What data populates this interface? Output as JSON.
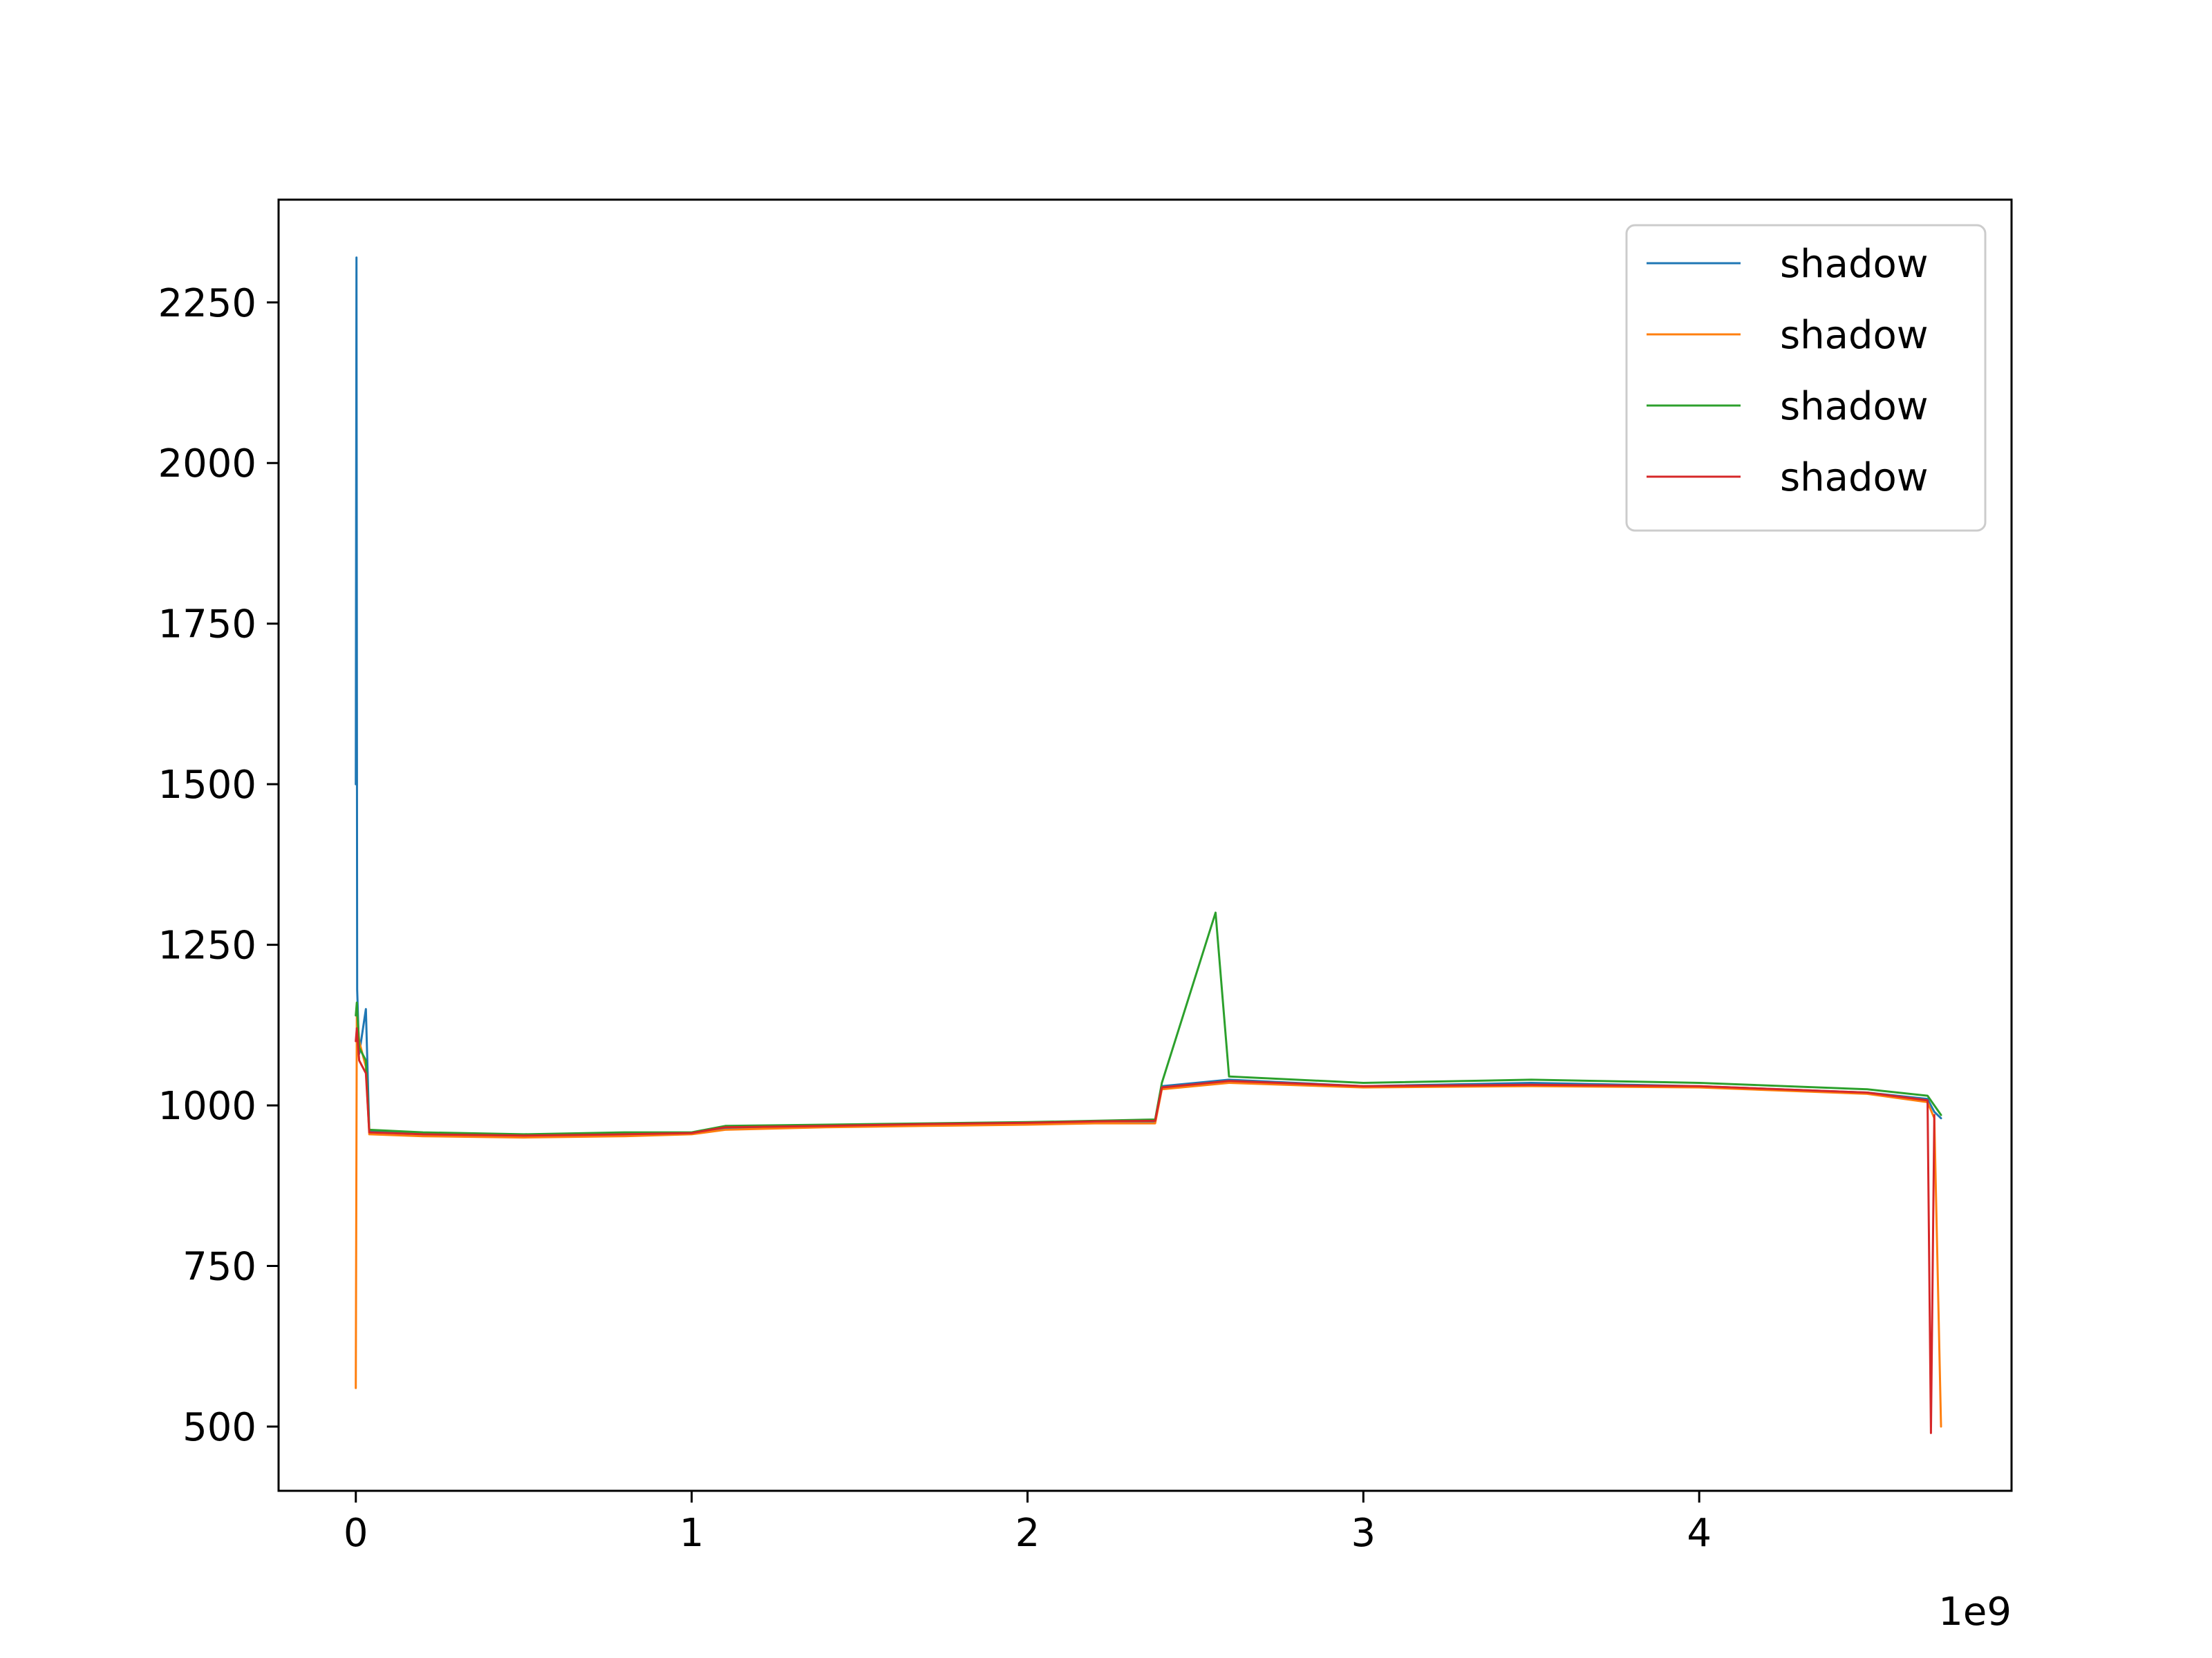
{
  "chart_data": {
    "type": "line",
    "title": "",
    "xlabel": "",
    "ylabel": "",
    "x_offset_label": "1e9",
    "xlim": [
      -0.23,
      4.93
    ],
    "ylim": [
      400,
      2410
    ],
    "x_ticks": [
      0,
      1,
      2,
      3,
      4
    ],
    "x_tick_labels": [
      "0",
      "1",
      "2",
      "3",
      "4"
    ],
    "y_ticks": [
      500,
      750,
      1000,
      1250,
      1500,
      1750,
      2000,
      2250
    ],
    "y_tick_labels": [
      "500",
      "750",
      "1000",
      "1250",
      "1500",
      "1750",
      "2000",
      "2250"
    ],
    "grid": false,
    "legend_position": "top-right",
    "x_units_note": "x values expressed in units of 1e9",
    "series": [
      {
        "name": "shadow",
        "color": "#1f77b4",
        "points": [
          [
            0,
            1500
          ],
          [
            0.002,
            2320
          ],
          [
            0.004,
            1180
          ],
          [
            0.01,
            1080
          ],
          [
            0.03,
            1150
          ],
          [
            0.04,
            960
          ],
          [
            0.2,
            955
          ],
          [
            0.5,
            952
          ],
          [
            0.8,
            955
          ],
          [
            1.0,
            956
          ],
          [
            1.1,
            965
          ],
          [
            1.4,
            968
          ],
          [
            1.7,
            970
          ],
          [
            2.0,
            972
          ],
          [
            2.2,
            975
          ],
          [
            2.38,
            975
          ],
          [
            2.4,
            1030
          ],
          [
            2.6,
            1040
          ],
          [
            3.0,
            1030
          ],
          [
            3.5,
            1035
          ],
          [
            4.0,
            1030
          ],
          [
            4.5,
            1020
          ],
          [
            4.68,
            1010
          ],
          [
            4.7,
            990
          ],
          [
            4.72,
            980
          ]
        ]
      },
      {
        "name": "shadow",
        "color": "#ff7f0e",
        "points": [
          [
            0,
            560
          ],
          [
            0.003,
            1150
          ],
          [
            0.01,
            1100
          ],
          [
            0.03,
            1060
          ],
          [
            0.04,
            955
          ],
          [
            0.2,
            952
          ],
          [
            0.5,
            950
          ],
          [
            0.8,
            952
          ],
          [
            1.0,
            955
          ],
          [
            1.1,
            962
          ],
          [
            1.4,
            966
          ],
          [
            1.7,
            968
          ],
          [
            2.0,
            970
          ],
          [
            2.2,
            972
          ],
          [
            2.38,
            972
          ],
          [
            2.4,
            1025
          ],
          [
            2.6,
            1035
          ],
          [
            3.0,
            1028
          ],
          [
            3.5,
            1030
          ],
          [
            4.0,
            1028
          ],
          [
            4.5,
            1018
          ],
          [
            4.68,
            1005
          ],
          [
            4.7,
            980
          ],
          [
            4.72,
            500
          ]
        ]
      },
      {
        "name": "shadow",
        "color": "#2ca02c",
        "points": [
          [
            0,
            1140
          ],
          [
            0.003,
            1160
          ],
          [
            0.01,
            1090
          ],
          [
            0.03,
            1070
          ],
          [
            0.04,
            962
          ],
          [
            0.2,
            958
          ],
          [
            0.5,
            955
          ],
          [
            0.8,
            958
          ],
          [
            1.0,
            958
          ],
          [
            1.1,
            968
          ],
          [
            1.4,
            970
          ],
          [
            1.7,
            972
          ],
          [
            2.0,
            974
          ],
          [
            2.2,
            976
          ],
          [
            2.38,
            978
          ],
          [
            2.4,
            1035
          ],
          [
            2.56,
            1300
          ],
          [
            2.6,
            1045
          ],
          [
            3.0,
            1035
          ],
          [
            3.5,
            1040
          ],
          [
            4.0,
            1035
          ],
          [
            4.5,
            1025
          ],
          [
            4.68,
            1015
          ],
          [
            4.7,
            1000
          ],
          [
            4.72,
            985
          ]
        ]
      },
      {
        "name": "shadow",
        "color": "#d62728",
        "points": [
          [
            0,
            1100
          ],
          [
            0.003,
            1120
          ],
          [
            0.01,
            1070
          ],
          [
            0.03,
            1050
          ],
          [
            0.04,
            958
          ],
          [
            0.2,
            955
          ],
          [
            0.5,
            953
          ],
          [
            0.8,
            955
          ],
          [
            1.0,
            957
          ],
          [
            1.1,
            966
          ],
          [
            1.4,
            968
          ],
          [
            1.7,
            971
          ],
          [
            2.0,
            973
          ],
          [
            2.2,
            975
          ],
          [
            2.38,
            976
          ],
          [
            2.4,
            1028
          ],
          [
            2.6,
            1038
          ],
          [
            3.0,
            1030
          ],
          [
            3.5,
            1032
          ],
          [
            4.0,
            1030
          ],
          [
            4.5,
            1020
          ],
          [
            4.68,
            1008
          ],
          [
            4.69,
            490
          ],
          [
            4.7,
            985
          ]
        ]
      }
    ]
  }
}
